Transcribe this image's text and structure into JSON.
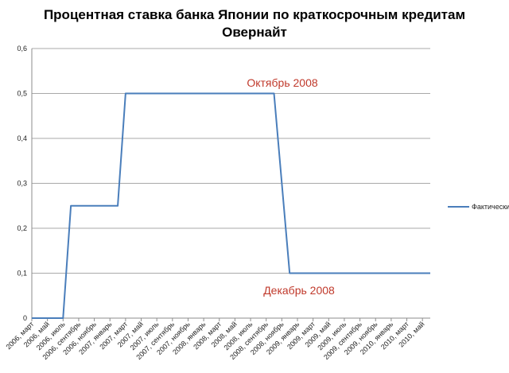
{
  "chart_data": {
    "type": "line",
    "title": [
      "Процентная ставка банка Японии по краткосрочным кредитам",
      "Овернайт"
    ],
    "xlabel": "",
    "ylabel": "",
    "ylim": [
      0,
      0.6
    ],
    "y_ticks": [
      "0",
      "0,1",
      "0,2",
      "0,3",
      "0,4",
      "0,5",
      "0,6"
    ],
    "y_tick_values": [
      0,
      0.1,
      0.2,
      0.3,
      0.4,
      0.5,
      0.6
    ],
    "grid": true,
    "legend_position": "right",
    "x_tick_labels": [
      "2006, март",
      "2006, май",
      "2006, июль",
      "2006, сентябрь",
      "2006, ноябрь",
      "2007, январь",
      "2007, март",
      "2007, май",
      "2007, июль",
      "2007, сентябрь",
      "2007, ноябрь",
      "2008, январь",
      "2008, март",
      "2008, май",
      "2008, июль",
      "2008, сентябрь",
      "2008, ноябрь",
      "2009, январь",
      "2009, март",
      "2009, май",
      "2009, июль",
      "2009, сентябрь",
      "2009, ноябрь",
      "2010, январь",
      "2010, март",
      "2010, май"
    ],
    "series": [
      {
        "name": "Фактически",
        "color": "#4a7ebb",
        "values": [
          0,
          0,
          0,
          0,
          0,
          0.25,
          0.25,
          0.25,
          0.25,
          0.25,
          0.25,
          0.25,
          0.5,
          0.5,
          0.5,
          0.5,
          0.5,
          0.5,
          0.5,
          0.5,
          0.5,
          0.5,
          0.5,
          0.5,
          0.5,
          0.5,
          0.5,
          0.5,
          0.5,
          0.5,
          0.5,
          0.5,
          0.3,
          0.1,
          0.1,
          0.1,
          0.1,
          0.1,
          0.1,
          0.1,
          0.1,
          0.1,
          0.1,
          0.1,
          0.1,
          0.1,
          0.1,
          0.1,
          0.1,
          0.1,
          0.1,
          0.1
        ]
      }
    ],
    "annotations": [
      {
        "text": "Октябрь 2008",
        "color": "#c0392b"
      },
      {
        "text": "Декабрь 2008",
        "color": "#c0392b"
      }
    ]
  }
}
